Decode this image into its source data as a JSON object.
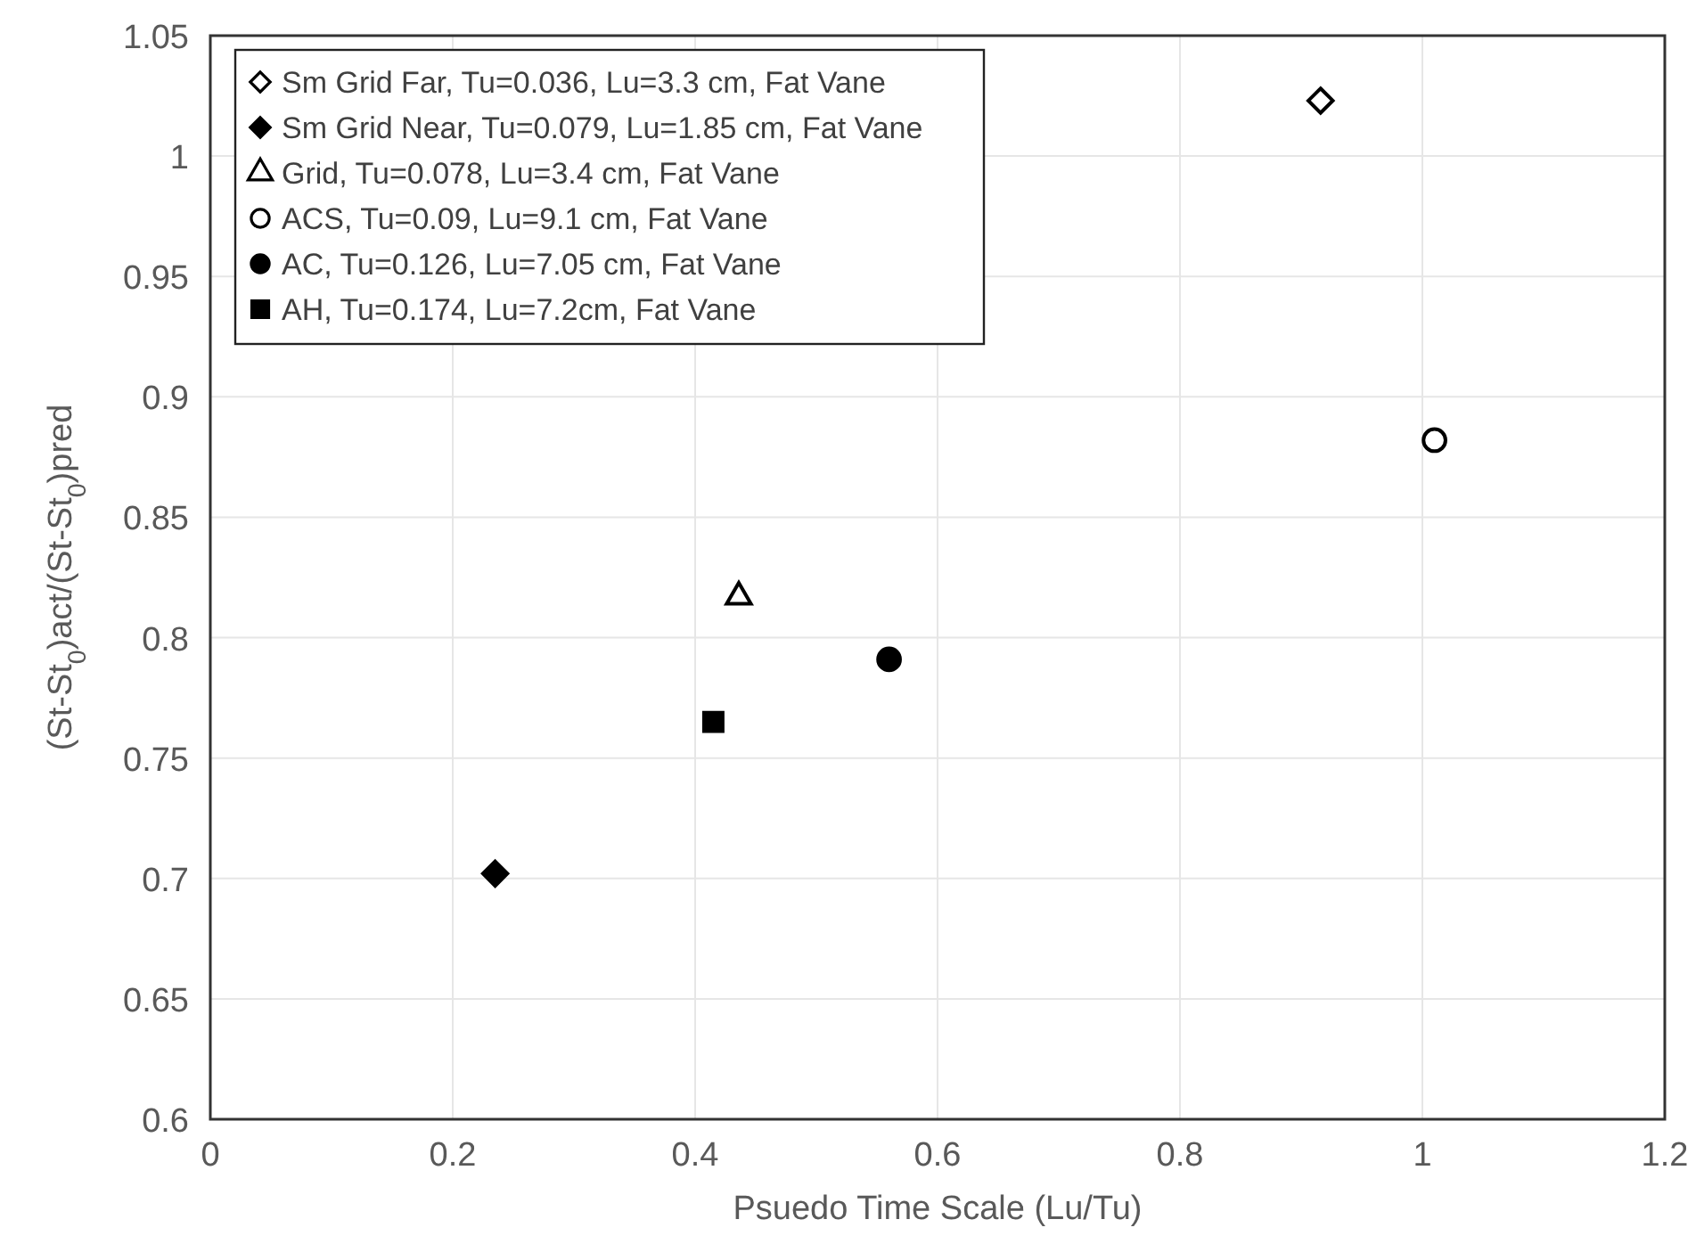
{
  "chart_data": {
    "type": "scatter",
    "xlabel": "Psuedo Time Scale (Lu/Tu)",
    "ylabel": "(St-St$_{0}$)act/(St-St$_{0}$)pred",
    "xlim": [
      0,
      1.2
    ],
    "xticks": [
      0,
      0.2,
      0.4,
      0.6,
      0.8,
      1,
      1.2
    ],
    "ylim": [
      0.6,
      1.05
    ],
    "yticks": [
      0.6,
      0.65,
      0.7,
      0.75,
      0.8,
      0.85,
      0.9,
      0.95,
      1,
      1.05
    ],
    "grid": true,
    "legend": "top left",
    "series": [
      {
        "name": "Sm Grid Far, Tu=0.036, Lu=3.3 cm, Fat Vane",
        "color": "#ffffff",
        "marker": "diamond",
        "x": [
          0.916
        ],
        "values": [
          1.023
        ]
      },
      {
        "name": "Sm Grid Near, Tu=0.079, Lu=1.85 cm, Fat Vane",
        "color": "#000000",
        "marker": "diamond",
        "x": [
          0.235
        ],
        "values": [
          0.702
        ]
      },
      {
        "name": "Grid, Tu=0.078, Lu=3.4 cm, Fat Vane",
        "color": "#ffffff",
        "marker": "triangle",
        "x": [
          0.436
        ],
        "values": [
          0.817
        ]
      },
      {
        "name": "ACS, Tu=0.09, Lu=9.1 cm, Fat Vane",
        "color": "#ffffff",
        "marker": "circle",
        "x": [
          1.01
        ],
        "values": [
          0.882
        ]
      },
      {
        "name": "AC, Tu=0.126, Lu=7.05 cm, Fat Vane",
        "color": "#000000",
        "marker": "circle",
        "x": [
          0.56
        ],
        "values": [
          0.791
        ]
      },
      {
        "name": "AH, Tu=0.174, Lu=7.2cm, Fat Vane",
        "color": "#000000",
        "marker": "square",
        "x": [
          0.415
        ],
        "values": [
          0.765
        ]
      }
    ]
  }
}
